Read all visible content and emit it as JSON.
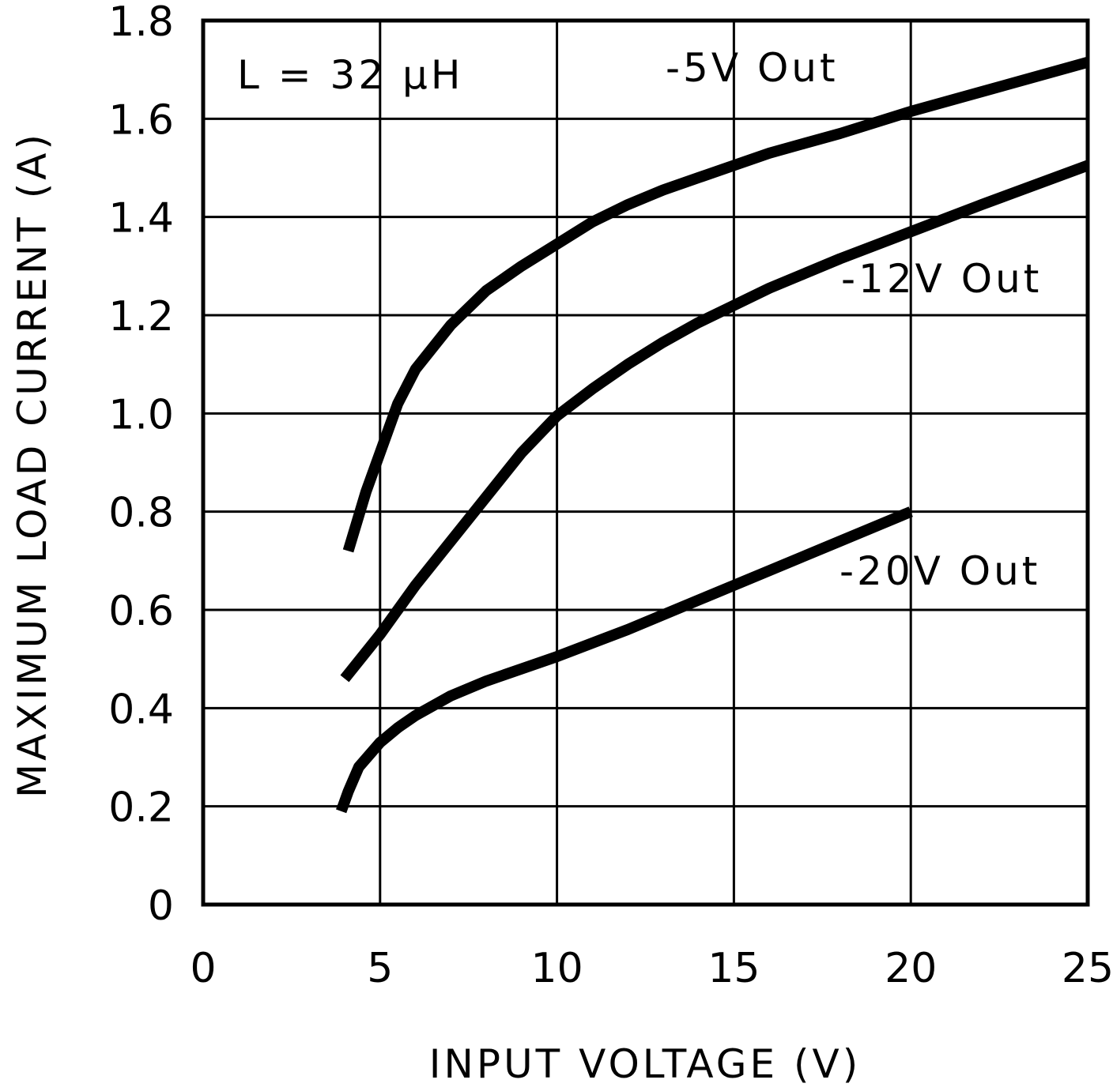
{
  "chart_data": {
    "type": "line",
    "title": "",
    "xlabel": "INPUT VOLTAGE (V)",
    "ylabel": "MAXIMUM LOAD CURRENT (A)",
    "xlim": [
      0,
      25
    ],
    "ylim": [
      0,
      1.8
    ],
    "x_ticks": [
      "0",
      "5",
      "10",
      "15",
      "20",
      "25"
    ],
    "y_ticks": [
      "0",
      "0.2",
      "0.4",
      "0.6",
      "0.8",
      "1.0",
      "1.2",
      "1.4",
      "1.6",
      "1.8"
    ],
    "grid": true,
    "line_color": "#000000",
    "annotations": [
      "L = 32 µH"
    ],
    "series": [
      {
        "name": "-5V Out",
        "points": [
          [
            4.1,
            0.72
          ],
          [
            4.6,
            0.84
          ],
          [
            5.0,
            0.92
          ],
          [
            5.5,
            1.02
          ],
          [
            6.0,
            1.09
          ],
          [
            7.0,
            1.18
          ],
          [
            8.0,
            1.25
          ],
          [
            9.0,
            1.3
          ],
          [
            10.0,
            1.345
          ],
          [
            11.0,
            1.39
          ],
          [
            12.0,
            1.425
          ],
          [
            13.0,
            1.455
          ],
          [
            14.0,
            1.48
          ],
          [
            15.0,
            1.505
          ],
          [
            16.0,
            1.53
          ],
          [
            17.0,
            1.55
          ],
          [
            18.0,
            1.57
          ],
          [
            20.0,
            1.615
          ],
          [
            22.0,
            1.655
          ],
          [
            25.0,
            1.715
          ]
        ]
      },
      {
        "name": "-12V Out",
        "points": [
          [
            4.0,
            0.46
          ],
          [
            5.0,
            0.55
          ],
          [
            6.0,
            0.65
          ],
          [
            7.0,
            0.74
          ],
          [
            8.0,
            0.83
          ],
          [
            9.0,
            0.92
          ],
          [
            10.0,
            0.995
          ],
          [
            11.0,
            1.05
          ],
          [
            12.0,
            1.1
          ],
          [
            13.0,
            1.145
          ],
          [
            14.0,
            1.185
          ],
          [
            15.0,
            1.22
          ],
          [
            16.0,
            1.255
          ],
          [
            17.0,
            1.285
          ],
          [
            18.0,
            1.315
          ],
          [
            20.0,
            1.37
          ],
          [
            22.0,
            1.425
          ],
          [
            25.0,
            1.505
          ]
        ]
      },
      {
        "name": "-20V Out",
        "points": [
          [
            3.9,
            0.19
          ],
          [
            4.1,
            0.23
          ],
          [
            4.4,
            0.28
          ],
          [
            5.0,
            0.33
          ],
          [
            5.5,
            0.36
          ],
          [
            6.0,
            0.385
          ],
          [
            7.0,
            0.425
          ],
          [
            8.0,
            0.455
          ],
          [
            9.0,
            0.48
          ],
          [
            10.0,
            0.505
          ],
          [
            12.0,
            0.56
          ],
          [
            14.0,
            0.62
          ],
          [
            16.0,
            0.68
          ],
          [
            18.0,
            0.74
          ],
          [
            20.0,
            0.8
          ]
        ]
      }
    ]
  }
}
